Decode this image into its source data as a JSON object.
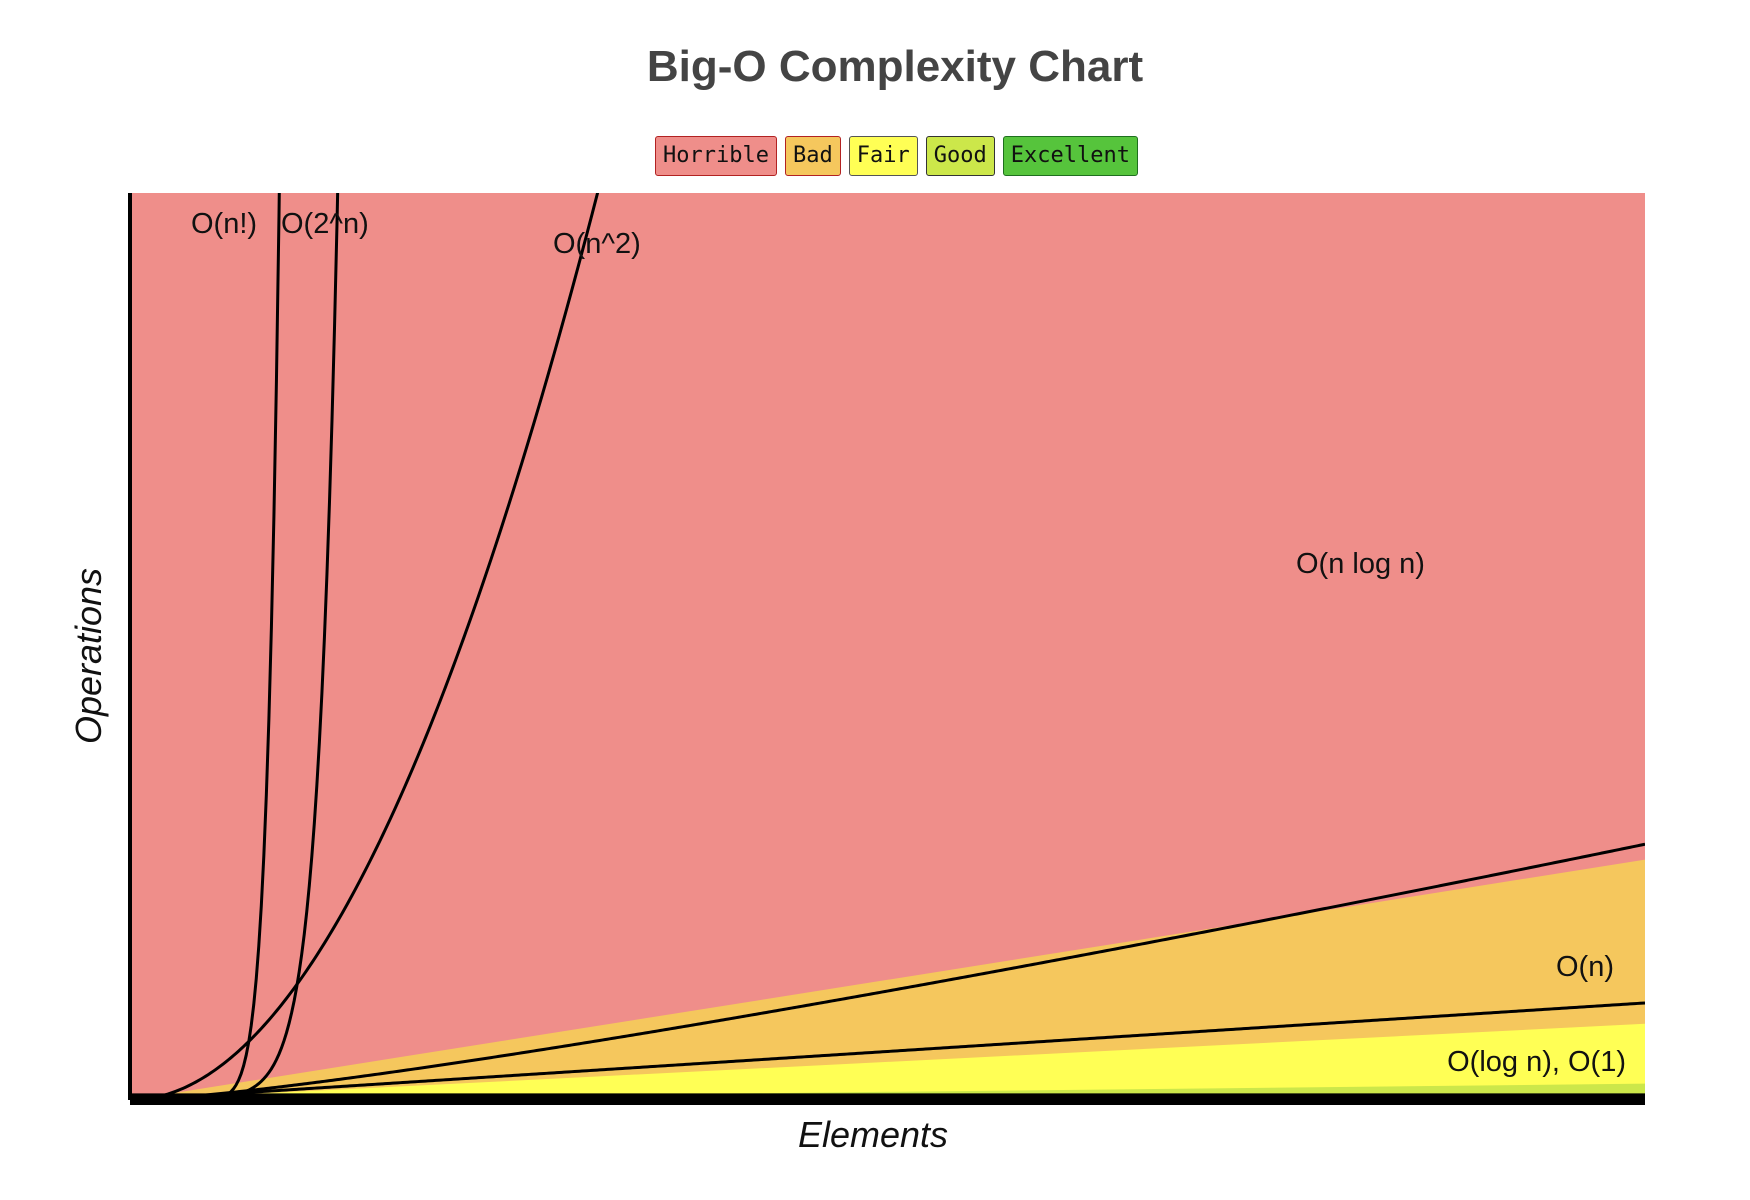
{
  "chart_data": {
    "type": "area",
    "title": "Big-O Complexity Chart",
    "xlabel": "Elements",
    "ylabel": "Operations",
    "xlim": [
      0,
      100
    ],
    "ylim": [
      0,
      100
    ],
    "legend_position": "top-center",
    "legend": [
      {
        "label": "Horrible",
        "color": "#ef8e8a",
        "border": "#b22222"
      },
      {
        "label": "Bad",
        "color": "#f5c75d",
        "border": "#b22222"
      },
      {
        "label": "Fair",
        "color": "#ffff55",
        "border": "#555555"
      },
      {
        "label": "Good",
        "color": "#cce74a",
        "border": "#333333"
      },
      {
        "label": "Excellent",
        "color": "#56c43c",
        "border": "#1f6f1f"
      }
    ],
    "regions": [
      {
        "name": "Horrible",
        "upper_slope": 1.0
      },
      {
        "name": "Bad",
        "upper_slope": 0.265
      },
      {
        "name": "Fair",
        "upper_slope": 0.084
      },
      {
        "name": "Good",
        "upper_slope": 0.018
      },
      {
        "name": "Excellent",
        "upper_slope": 0.005
      }
    ],
    "series": [
      {
        "name": "O(n!)",
        "function": "factorial"
      },
      {
        "name": "O(2^n)",
        "function": "exponential"
      },
      {
        "name": "O(n^2)",
        "function": "quadratic"
      },
      {
        "name": "O(n log n)",
        "function": "nlogn"
      },
      {
        "name": "O(n)",
        "function": "linear"
      },
      {
        "name": "O(log n), O(1)",
        "function": "constant"
      }
    ]
  }
}
